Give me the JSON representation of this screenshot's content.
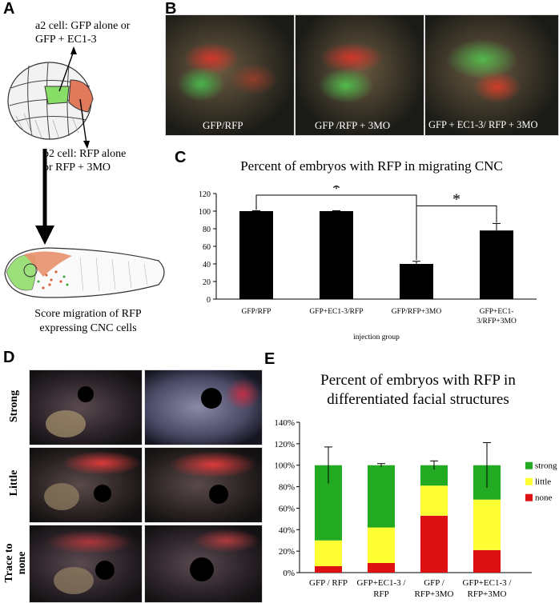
{
  "panels": {
    "a": "A",
    "b": "B",
    "c": "C",
    "d": "D",
    "e": "E"
  },
  "panel_a": {
    "a2_label_line1": "a2 cell: GFP alone or",
    "a2_label_line2": "GFP + EC1-3",
    "b2_label_line1": "b2 cell: RFP alone",
    "b2_label_line2": "or RFP + 3MO",
    "score_line1": "Score migration of RFP",
    "score_line2": "expressing CNC cells"
  },
  "panel_b": {
    "images": [
      {
        "label": "GFP/RFP"
      },
      {
        "label": "GFP /RFP + 3MO"
      },
      {
        "label": "GFP + EC1-3/ RFP + 3MO"
      }
    ]
  },
  "panel_d": {
    "rows": [
      {
        "label": "Strong"
      },
      {
        "label": "Little"
      },
      {
        "label_line1": "Trace to",
        "label_line2": "none"
      }
    ]
  },
  "colors": {
    "green": "#22aa22",
    "yellow": "#ffff33",
    "red": "#dd1111",
    "bar": "#000000"
  },
  "chart_data": [
    {
      "type": "bar",
      "title": "Percent of embryos with RFP in migrating CNC",
      "xlabel": "injection group",
      "ylabel": "",
      "ylim": [
        0,
        120
      ],
      "yticks": [
        "0",
        "20",
        "40",
        "60",
        "80",
        "100",
        "120"
      ],
      "categories": [
        {
          "line1": "GFP/RFP",
          "line2": ""
        },
        {
          "line1": "GFP+EC1-3/RFP",
          "line2": ""
        },
        {
          "line1": "GFP/RFP+3MO",
          "line2": ""
        },
        {
          "line1": "GFP+EC1-",
          "line2": "3/RFP+3MO"
        }
      ],
      "values": [
        100,
        100,
        40,
        78
      ],
      "errors": [
        0.5,
        0.5,
        3,
        8
      ],
      "significance": [
        {
          "from": 0,
          "to": 2,
          "label": "*"
        },
        {
          "from": 2,
          "to": 3,
          "label": "*"
        }
      ]
    },
    {
      "type": "bar",
      "stacked": true,
      "title_line1": "Percent of embryos with RFP in",
      "title_line2": "differentiated facial structures",
      "ylim": [
        0,
        140
      ],
      "yticks": [
        "0%",
        "20%",
        "40%",
        "60%",
        "80%",
        "100%",
        "120%",
        "140%"
      ],
      "categories": [
        {
          "line1": "GFP / RFP",
          "line2": ""
        },
        {
          "line1": "GFP+EC1-3 /",
          "line2": "RFP"
        },
        {
          "line1": "GFP /",
          "line2": "RFP+3MO"
        },
        {
          "line1": "GFP+EC1-3 /",
          "line2": "RFP+3MO"
        }
      ],
      "series": [
        {
          "name": "none",
          "values": [
            6,
            9,
            53,
            21
          ]
        },
        {
          "name": "little",
          "values": [
            24,
            33,
            28,
            47
          ]
        },
        {
          "name": "strong",
          "values": [
            70,
            58,
            19,
            32
          ]
        }
      ],
      "errors": [
        17,
        1.5,
        4,
        21
      ],
      "legend": [
        "strong",
        "little",
        "none"
      ],
      "legend_position": "right"
    }
  ]
}
